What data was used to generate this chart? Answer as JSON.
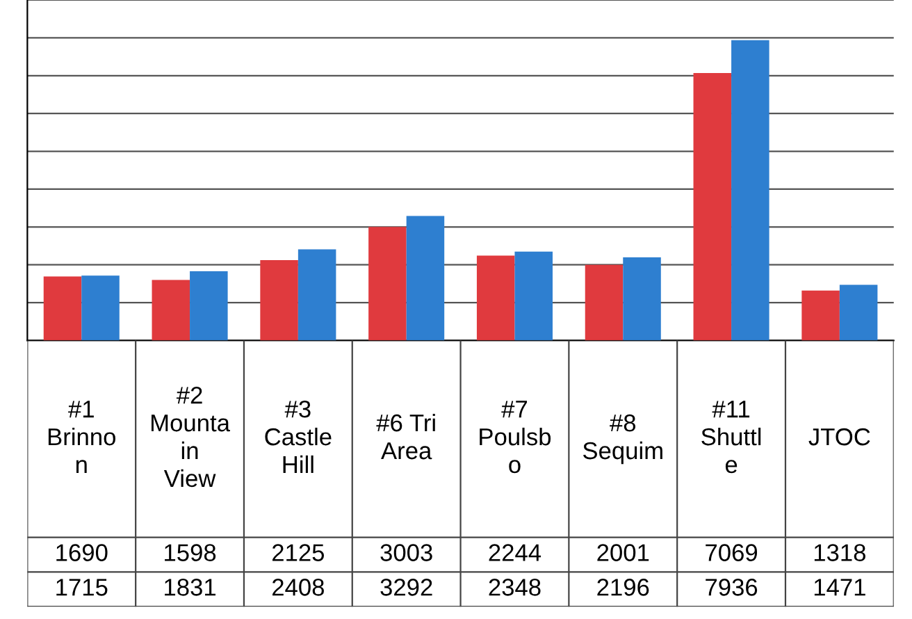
{
  "chart_data": {
    "type": "bar",
    "categories": [
      "#1 Brinnon",
      "#2 Mountain View",
      "#3 Castle Hill",
      "#6 Tri Area",
      "#7 Poulsbo",
      "#8 Sequim",
      "#11 Shuttle",
      "JTOC"
    ],
    "series": [
      {
        "color": "#e03a3e",
        "values": [
          1690,
          1598,
          2125,
          3003,
          2244,
          2001,
          7069,
          1318
        ]
      },
      {
        "color": "#2e7fd0",
        "values": [
          1715,
          1831,
          2408,
          3292,
          2348,
          2196,
          7936,
          1471
        ]
      }
    ],
    "ylim": [
      0,
      9000
    ],
    "yticks": [
      {
        "value": 0,
        "label": null
      },
      {
        "value": 1000,
        "label": null
      },
      {
        "value": 2000,
        "label": null
      },
      {
        "value": 3000,
        "label": null
      },
      {
        "value": 4000,
        "label": null
      },
      {
        "value": 5000,
        "label": null
      },
      {
        "value": 6000,
        "label": null
      },
      {
        "value": 7000,
        "label": null
      },
      {
        "value": 8000,
        "label": null
      },
      {
        "value": 9000,
        "label": null
      }
    ],
    "grid": "y",
    "data_labels": true,
    "tick_labels": "x"
  }
}
